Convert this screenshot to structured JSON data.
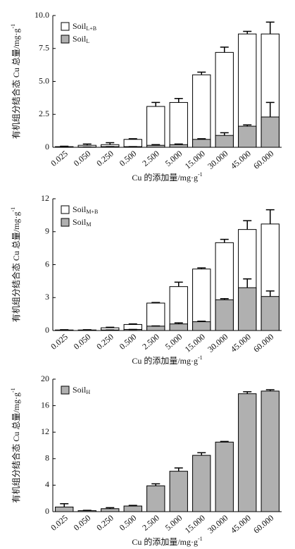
{
  "chart_data": [
    {
      "type": "bar",
      "categories": [
        "0.025",
        "0.050",
        "0.250",
        "0.500",
        "2.500",
        "5.000",
        "15.000",
        "30.000",
        "45.000",
        "60.000"
      ],
      "series": [
        {
          "name": "Soil",
          "name_sub": "L+B",
          "color": "#ffffff",
          "values": [
            0.05,
            0.15,
            0.2,
            0.6,
            3.1,
            3.4,
            5.5,
            7.2,
            8.6,
            8.6
          ],
          "errors": [
            0.03,
            0.1,
            0.15,
            0.05,
            0.3,
            0.3,
            0.2,
            0.4,
            0.2,
            0.9
          ]
        },
        {
          "name": "Soil",
          "name_sub": "L",
          "color": "#b0b0b0",
          "values": [
            0.01,
            0.02,
            0.05,
            0.05,
            0.15,
            0.2,
            0.6,
            0.9,
            1.6,
            2.3
          ],
          "errors": [
            0,
            0,
            0,
            0,
            0.05,
            0.05,
            0.05,
            0.2,
            0.1,
            1.1
          ]
        }
      ],
      "ylim": [
        0,
        10
      ],
      "yticks": [
        0,
        2.5,
        {
          "value": 5,
          "label": "5.0"
        },
        7.5,
        {
          "value": 10,
          "label": "10.0"
        }
      ],
      "x_label": "Cu 的添加量/mg·g",
      "x_label_sup": "-1",
      "y_label": "有机组分结合态 Cu 总量/mg·g",
      "y_label_sup": "-1",
      "legend": "top-left"
    },
    {
      "type": "bar",
      "categories": [
        "0.025",
        "0.050",
        "0.250",
        "0.500",
        "2.500",
        "5.000",
        "15.000",
        "30.000",
        "45.000",
        "60.000"
      ],
      "series": [
        {
          "name": "Soil",
          "name_sub": "M+B",
          "color": "#ffffff",
          "values": [
            0.05,
            0.05,
            0.25,
            0.55,
            2.5,
            4.0,
            5.6,
            8.0,
            9.2,
            9.7
          ],
          "errors": [
            0.02,
            0.02,
            0.05,
            0.05,
            0.05,
            0.4,
            0.1,
            0.3,
            0.8,
            1.3
          ]
        },
        {
          "name": "Soil",
          "name_sub": "M",
          "color": "#b0b0b0",
          "values": [
            0.02,
            0.02,
            0.05,
            0.1,
            0.4,
            0.6,
            0.8,
            2.8,
            3.9,
            3.1
          ],
          "errors": [
            0,
            0,
            0,
            0,
            0.02,
            0.1,
            0.05,
            0.1,
            0.8,
            0.5
          ]
        }
      ],
      "ylim": [
        0,
        12
      ],
      "yticks": [
        0,
        3,
        6,
        9,
        12
      ],
      "x_label": "Cu 的添加量/mg·g",
      "x_label_sup": "-1",
      "y_label": "有机组分结合态 Cu 总量/mg·g",
      "y_label_sup": "-1",
      "legend": "top-left"
    },
    {
      "type": "bar",
      "categories": [
        "0.025",
        "0.050",
        "0.250",
        "0.500",
        "2.500",
        "5.000",
        "15.000",
        "30.000",
        "45.000",
        "60.000"
      ],
      "series": [
        {
          "name": "Soil",
          "name_sub": "H",
          "color": "#b0b0b0",
          "values": [
            0.7,
            0.15,
            0.45,
            0.85,
            3.9,
            6.1,
            8.5,
            10.5,
            17.8,
            18.2
          ],
          "errors": [
            0.5,
            0.05,
            0.15,
            0.1,
            0.3,
            0.5,
            0.4,
            0.1,
            0.3,
            0.2
          ]
        }
      ],
      "ylim": [
        0,
        20
      ],
      "yticks": [
        0,
        4,
        8,
        12,
        16,
        20
      ],
      "x_label": "Cu 的添加量/mg·g",
      "x_label_sup": "-1",
      "y_label": "有机组分结合态 Cu 总量/mg·g",
      "y_label_sup": "-1",
      "legend": "top-left"
    }
  ]
}
